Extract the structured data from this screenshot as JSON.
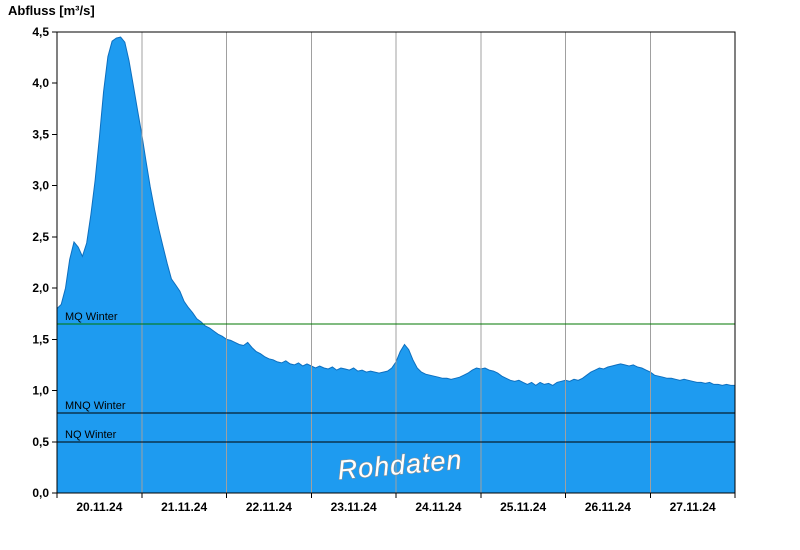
{
  "chart_data": {
    "type": "area",
    "title": "Abfluss [m³/s]",
    "watermark": "Rohdaten",
    "xlabel": "",
    "ylabel": "Abfluss [m³/s]",
    "ylim": [
      0,
      4.5
    ],
    "x_range_days": [
      0,
      8
    ],
    "grid": "vertical-day-boundaries",
    "legend": "none",
    "yticks": {
      "values": [
        0,
        0.5,
        1.0,
        1.5,
        2.0,
        2.5,
        3.0,
        3.5,
        4.0,
        4.5
      ],
      "labels": [
        "0,0",
        "0,5",
        "1,0",
        "1,5",
        "2,0",
        "2,5",
        "3,0",
        "3,5",
        "4,0",
        "4,5"
      ]
    },
    "categories": [
      "20.11.24",
      "21.11.24",
      "22.11.24",
      "23.11.24",
      "24.11.24",
      "25.11.24",
      "26.11.24",
      "27.11.24"
    ],
    "reference_lines": [
      {
        "label": "MQ Winter",
        "value": 1.65,
        "color": "#007700"
      },
      {
        "label": "MNQ Winter",
        "value": 0.78,
        "color": "#000000"
      },
      {
        "label": "NQ Winter",
        "value": 0.5,
        "color": "#000000"
      }
    ],
    "colors": {
      "fill": "#1E9BF0",
      "stroke": "#0D6FBF",
      "grid": "#a0a0a0",
      "axis": "#000000"
    },
    "series": [
      {
        "name": "Abfluss Rohdaten",
        "x_step_days": 0.05,
        "values": [
          1.8,
          1.84,
          2.0,
          2.28,
          2.45,
          2.4,
          2.31,
          2.44,
          2.72,
          3.05,
          3.47,
          3.92,
          4.26,
          4.41,
          4.44,
          4.45,
          4.4,
          4.22,
          3.98,
          3.74,
          3.5,
          3.24,
          2.99,
          2.77,
          2.58,
          2.41,
          2.24,
          2.09,
          2.03,
          1.97,
          1.87,
          1.81,
          1.76,
          1.7,
          1.67,
          1.63,
          1.61,
          1.58,
          1.55,
          1.53,
          1.5,
          1.49,
          1.47,
          1.45,
          1.44,
          1.47,
          1.42,
          1.38,
          1.36,
          1.33,
          1.31,
          1.3,
          1.28,
          1.27,
          1.29,
          1.26,
          1.25,
          1.27,
          1.24,
          1.26,
          1.24,
          1.22,
          1.24,
          1.22,
          1.21,
          1.23,
          1.2,
          1.22,
          1.21,
          1.2,
          1.22,
          1.19,
          1.2,
          1.18,
          1.19,
          1.18,
          1.17,
          1.18,
          1.19,
          1.22,
          1.28,
          1.38,
          1.45,
          1.4,
          1.3,
          1.22,
          1.18,
          1.16,
          1.15,
          1.14,
          1.13,
          1.12,
          1.12,
          1.11,
          1.12,
          1.13,
          1.15,
          1.17,
          1.2,
          1.22,
          1.21,
          1.22,
          1.2,
          1.19,
          1.17,
          1.14,
          1.12,
          1.1,
          1.09,
          1.1,
          1.08,
          1.06,
          1.08,
          1.05,
          1.08,
          1.06,
          1.07,
          1.05,
          1.08,
          1.09,
          1.1,
          1.09,
          1.11,
          1.1,
          1.12,
          1.15,
          1.18,
          1.2,
          1.22,
          1.21,
          1.23,
          1.24,
          1.25,
          1.26,
          1.25,
          1.24,
          1.25,
          1.23,
          1.22,
          1.2,
          1.18,
          1.15,
          1.14,
          1.13,
          1.12,
          1.12,
          1.11,
          1.1,
          1.11,
          1.1,
          1.09,
          1.08,
          1.08,
          1.07,
          1.08,
          1.06,
          1.06,
          1.05,
          1.06,
          1.05,
          1.05
        ]
      }
    ]
  }
}
